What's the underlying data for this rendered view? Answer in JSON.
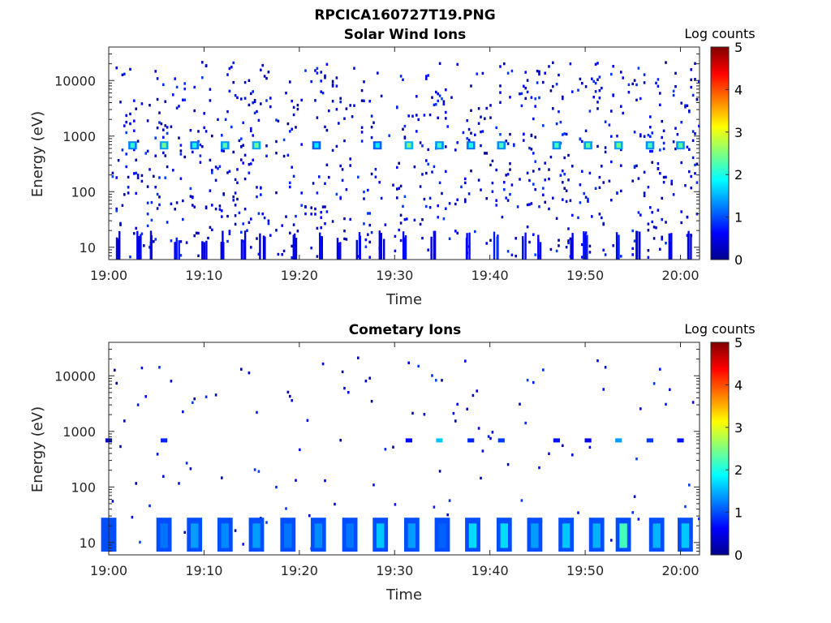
{
  "figure": {
    "title": "RPCICA160727T19.PNG"
  },
  "chart_data": [
    {
      "type": "heatmap",
      "title": "Solar Wind Ions",
      "xlabel": "Time",
      "ylabel": "Energy (eV)",
      "x_range": [
        "19:00",
        "20:02"
      ],
      "y_range_eV": [
        6,
        40000
      ],
      "y_scale": "log",
      "x_ticks": [
        "19:00",
        "19:10",
        "19:20",
        "19:30",
        "19:40",
        "19:50",
        "20:00"
      ],
      "y_ticks": [
        10,
        100,
        1000,
        10000
      ],
      "y_tick_labels": [
        "10",
        "100",
        "1000",
        "10000"
      ],
      "colorbar": {
        "label": "Log counts",
        "range": [
          0,
          5
        ],
        "ticks": [
          "0",
          "1",
          "2",
          "3",
          "4",
          "5"
        ]
      },
      "background_density": 0.55,
      "hotspots": [
        {
          "time": "19:02.5",
          "energy_eV": 700,
          "log_counts": 2.1
        },
        {
          "time": "19:05.8",
          "energy_eV": 700,
          "log_counts": 2.4
        },
        {
          "time": "19:09.0",
          "energy_eV": 700,
          "log_counts": 2.0
        },
        {
          "time": "19:12.2",
          "energy_eV": 700,
          "log_counts": 2.3
        },
        {
          "time": "19:15.5",
          "energy_eV": 700,
          "log_counts": 2.4
        },
        {
          "time": "19:21.8",
          "energy_eV": 700,
          "log_counts": 1.8
        },
        {
          "time": "19:28.2",
          "energy_eV": 700,
          "log_counts": 1.8
        },
        {
          "time": "19:31.5",
          "energy_eV": 700,
          "log_counts": 2.5
        },
        {
          "time": "19:34.7",
          "energy_eV": 700,
          "log_counts": 2.2
        },
        {
          "time": "19:38.0",
          "energy_eV": 700,
          "log_counts": 2.0
        },
        {
          "time": "19:41.2",
          "energy_eV": 700,
          "log_counts": 2.2
        },
        {
          "time": "19:47.0",
          "energy_eV": 700,
          "log_counts": 2.2
        },
        {
          "time": "19:50.3",
          "energy_eV": 700,
          "log_counts": 2.3
        },
        {
          "time": "19:53.5",
          "energy_eV": 700,
          "log_counts": 2.4
        },
        {
          "time": "19:56.8",
          "energy_eV": 700,
          "log_counts": 2.2
        },
        {
          "time": "20:00.0",
          "energy_eV": 700,
          "log_counts": 2.3
        }
      ],
      "low_energy_bursts": [
        {
          "time": "19:01.0",
          "log_counts": 0.3
        },
        {
          "time": "19:03.0",
          "log_counts": 0.4
        },
        {
          "time": "19:04.5",
          "log_counts": 0.3
        },
        {
          "time": "19:07.0",
          "log_counts": 0.5
        },
        {
          "time": "19:10.0",
          "log_counts": 0.4
        },
        {
          "time": "19:12.0",
          "log_counts": 0.3
        },
        {
          "time": "19:14.0",
          "log_counts": 0.4
        },
        {
          "time": "19:16.0",
          "log_counts": 0.3
        },
        {
          "time": "19:19.5",
          "log_counts": 0.3
        },
        {
          "time": "19:22.0",
          "log_counts": 0.4
        },
        {
          "time": "19:24.0",
          "log_counts": 0.5
        },
        {
          "time": "19:26.0",
          "log_counts": 0.4
        },
        {
          "time": "19:28.5",
          "log_counts": 0.3
        },
        {
          "time": "19:31.0",
          "log_counts": 0.4
        },
        {
          "time": "19:34.0",
          "log_counts": 0.3
        },
        {
          "time": "19:37.5",
          "log_counts": 0.4
        },
        {
          "time": "19:40.5",
          "log_counts": 0.7
        },
        {
          "time": "19:43.5",
          "log_counts": 0.4
        },
        {
          "time": "19:45.0",
          "log_counts": 0.5
        },
        {
          "time": "19:48.5",
          "log_counts": 0.4
        },
        {
          "time": "19:50.0",
          "log_counts": 0.5
        },
        {
          "time": "19:53.5",
          "log_counts": 0.6
        },
        {
          "time": "19:55.5",
          "log_counts": 0.4
        },
        {
          "time": "19:59.0",
          "log_counts": 0.3
        },
        {
          "time": "20:01.0",
          "log_counts": 0.4
        }
      ]
    },
    {
      "type": "heatmap",
      "title": "Cometary Ions",
      "xlabel": "Time",
      "ylabel": "Energy (eV)",
      "x_range": [
        "19:00",
        "20:02"
      ],
      "y_range_eV": [
        6,
        40000
      ],
      "y_scale": "log",
      "x_ticks": [
        "19:00",
        "19:10",
        "19:20",
        "19:30",
        "19:40",
        "19:50",
        "20:00"
      ],
      "y_ticks": [
        10,
        100,
        1000,
        10000
      ],
      "y_tick_labels": [
        "10",
        "100",
        "1000",
        "10000"
      ],
      "colorbar": {
        "label": "Log counts",
        "range": [
          0,
          5
        ],
        "ticks": [
          "0",
          "1",
          "2",
          "3",
          "4",
          "5"
        ]
      },
      "background_density": 0.15,
      "hotspots": [
        {
          "time": "19:00.0",
          "energy_eV": 12,
          "log_counts": 1.0
        },
        {
          "time": "19:05.8",
          "energy_eV": 12,
          "log_counts": 1.2
        },
        {
          "time": "19:09.0",
          "energy_eV": 12,
          "log_counts": 1.4
        },
        {
          "time": "19:12.2",
          "energy_eV": 12,
          "log_counts": 1.3
        },
        {
          "time": "19:15.5",
          "energy_eV": 12,
          "log_counts": 1.4
        },
        {
          "time": "19:18.8",
          "energy_eV": 12,
          "log_counts": 1.2
        },
        {
          "time": "19:22.0",
          "energy_eV": 12,
          "log_counts": 1.3
        },
        {
          "time": "19:25.3",
          "energy_eV": 12,
          "log_counts": 1.2
        },
        {
          "time": "19:28.5",
          "energy_eV": 12,
          "log_counts": 1.6
        },
        {
          "time": "19:31.8",
          "energy_eV": 12,
          "log_counts": 1.4
        },
        {
          "time": "19:35.0",
          "energy_eV": 12,
          "log_counts": 1.1
        },
        {
          "time": "19:38.2",
          "energy_eV": 12,
          "log_counts": 1.7
        },
        {
          "time": "19:41.5",
          "energy_eV": 12,
          "log_counts": 1.7
        },
        {
          "time": "19:44.7",
          "energy_eV": 12,
          "log_counts": 1.4
        },
        {
          "time": "19:48.0",
          "energy_eV": 12,
          "log_counts": 1.6
        },
        {
          "time": "19:51.2",
          "energy_eV": 12,
          "log_counts": 1.5
        },
        {
          "time": "19:54.0",
          "energy_eV": 12,
          "log_counts": 2.2
        },
        {
          "time": "19:57.5",
          "energy_eV": 12,
          "log_counts": 1.5
        },
        {
          "time": "20:00.5",
          "energy_eV": 12,
          "log_counts": 1.6
        }
      ],
      "mid_energy_blips": [
        {
          "time": "19:00.0",
          "energy_eV": 700,
          "log_counts": 0.3
        },
        {
          "time": "19:05.8",
          "energy_eV": 700,
          "log_counts": 0.8
        },
        {
          "time": "19:31.5",
          "energy_eV": 700,
          "log_counts": 0.6
        },
        {
          "time": "19:34.7",
          "energy_eV": 700,
          "log_counts": 1.6
        },
        {
          "time": "19:38.0",
          "energy_eV": 700,
          "log_counts": 0.8
        },
        {
          "time": "19:41.2",
          "energy_eV": 700,
          "log_counts": 0.9
        },
        {
          "time": "19:47.0",
          "energy_eV": 700,
          "log_counts": 0.7
        },
        {
          "time": "19:50.3",
          "energy_eV": 700,
          "log_counts": 0.6
        },
        {
          "time": "19:53.5",
          "energy_eV": 700,
          "log_counts": 1.4
        },
        {
          "time": "19:56.8",
          "energy_eV": 700,
          "log_counts": 0.9
        },
        {
          "time": "20:00.0",
          "energy_eV": 700,
          "log_counts": 0.7
        }
      ]
    }
  ]
}
